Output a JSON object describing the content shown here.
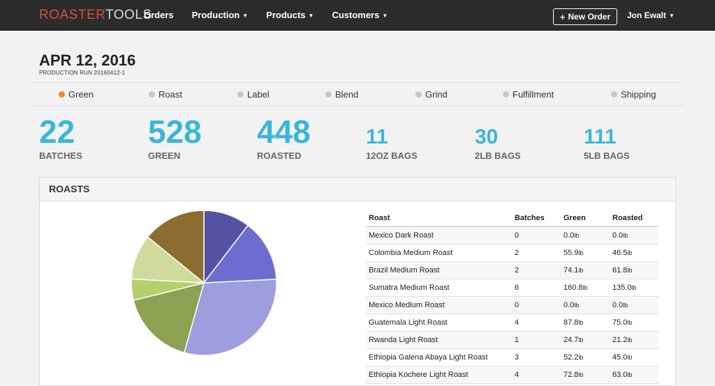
{
  "nav": {
    "brand_part1": "ROASTER",
    "brand_part2": "TOOLS",
    "items": [
      {
        "label": "Orders"
      },
      {
        "label": "Production"
      },
      {
        "label": "Products"
      },
      {
        "label": "Customers"
      }
    ],
    "new_order_label": "New Order",
    "user_name": "Jon Ewalt"
  },
  "header": {
    "date": "APR 12, 2016",
    "run": "PRODUCTION RUN 20160412-1"
  },
  "steps": [
    {
      "label": "Green",
      "active": true
    },
    {
      "label": "Roast",
      "active": false
    },
    {
      "label": "Label",
      "active": false
    },
    {
      "label": "Blend",
      "active": false
    },
    {
      "label": "Grind",
      "active": false
    },
    {
      "label": "Fulfillment",
      "active": false
    },
    {
      "label": "Shipping",
      "active": false
    }
  ],
  "stats": [
    {
      "value": "22",
      "label": "BATCHES"
    },
    {
      "value": "528",
      "label": "GREEN"
    },
    {
      "value": "448",
      "label": "ROASTED"
    },
    {
      "value": "11",
      "label": "12OZ BAGS"
    },
    {
      "value": "30",
      "label": "2LB BAGS"
    },
    {
      "value": "111",
      "label": "5LB BAGS"
    }
  ],
  "roasts": {
    "title": "ROASTS",
    "columns": [
      "Roast",
      "Batches",
      "Green",
      "Roasted"
    ],
    "unit": "lb",
    "rows": [
      {
        "name": "Mexico Dark Roast",
        "batches": "0",
        "green": "0.0",
        "roasted": "0.0"
      },
      {
        "name": "Colombia Medium Roast",
        "batches": "2",
        "green": "55.9",
        "roasted": "46.5"
      },
      {
        "name": "Brazil Medium Roast",
        "batches": "2",
        "green": "74.1",
        "roasted": "61.8"
      },
      {
        "name": "Sumatra Medium Roast",
        "batches": "6",
        "green": "160.8",
        "roasted": "135.0"
      },
      {
        "name": "Mexico Medium Roast",
        "batches": "0",
        "green": "0.0",
        "roasted": "0.0"
      },
      {
        "name": "Guatemala Light Roast",
        "batches": "4",
        "green": "87.8",
        "roasted": "75.0"
      },
      {
        "name": "Rwanda Light Roast",
        "batches": "1",
        "green": "24.7",
        "roasted": "21.2"
      },
      {
        "name": "Ethiopia Galena Abaya Light Roast",
        "batches": "3",
        "green": "52.2",
        "roasted": "45.0"
      },
      {
        "name": "Ethiopia Kochere Light Roast",
        "batches": "4",
        "green": "72.8",
        "roasted": "63.0"
      }
    ]
  },
  "chart_data": {
    "type": "pie",
    "slices": [
      {
        "value": 46.5,
        "color": "#5352a3"
      },
      {
        "value": 61.8,
        "color": "#6b6ecf"
      },
      {
        "value": 135.0,
        "color": "#9c9ede"
      },
      {
        "value": 75.0,
        "color": "#8ca252"
      },
      {
        "value": 21.2,
        "color": "#b5cf6b"
      },
      {
        "value": 45.0,
        "color": "#cedb9c"
      },
      {
        "value": 63.0,
        "color": "#8c6d31"
      }
    ]
  },
  "colors": {
    "accent": "#3ab7d8",
    "brand": "#d2533d",
    "active_step": "#e8912b",
    "navbar": "#2b2b2b"
  }
}
